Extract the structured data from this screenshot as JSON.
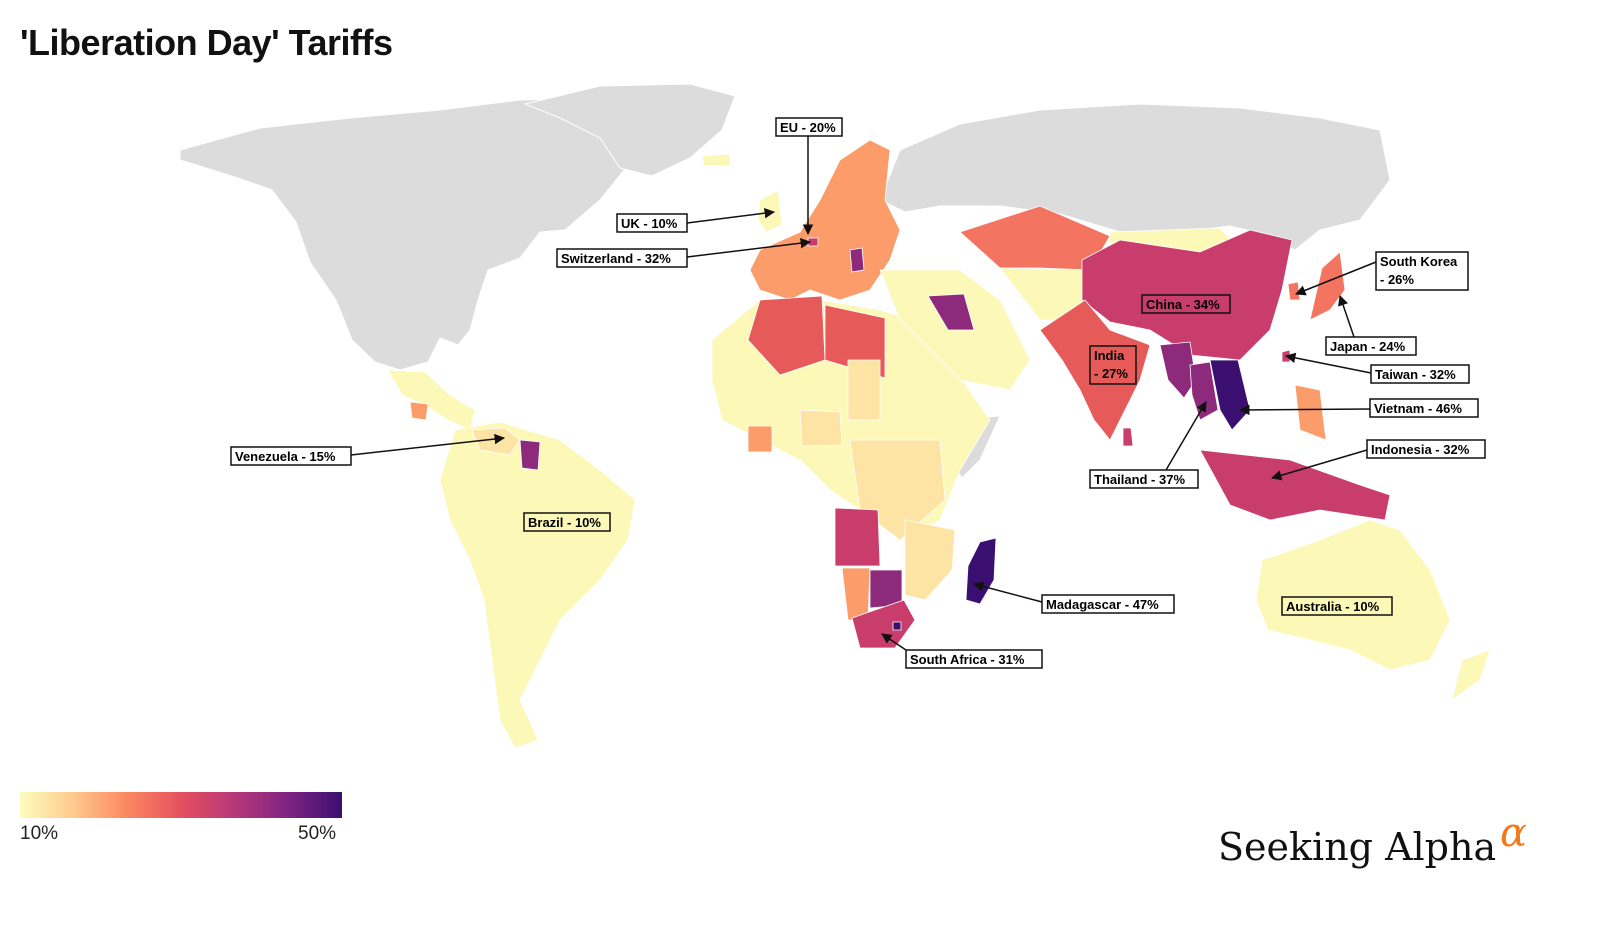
{
  "title": "'Liberation Day' Tariffs",
  "legend": {
    "min": "10%",
    "max": "50%"
  },
  "brand": {
    "name": "Seeking Alpha",
    "mark": "α"
  },
  "colors": {
    "none": "#dcdcdc",
    "t10": "#fcf8b8",
    "t15": "#fde3a4",
    "t20": "#fb9c6a",
    "t24": "#f37460",
    "t27": "#e65a5a",
    "t32": "#c83d6b",
    "t37": "#8d2a7c",
    "t47": "#3b0f70"
  },
  "labels": [
    {
      "id": "eu",
      "text": "EU - 20%"
    },
    {
      "id": "uk",
      "text": "UK - 10%"
    },
    {
      "id": "switzerland",
      "text": "Switzerland - 32%"
    },
    {
      "id": "venezuela",
      "text": "Venezuela - 15%"
    },
    {
      "id": "brazil",
      "text": "Brazil - 10%"
    },
    {
      "id": "china",
      "text": "China - 34%"
    },
    {
      "id": "india1",
      "text": "India"
    },
    {
      "id": "india2",
      "text": "- 27%"
    },
    {
      "id": "southkorea1",
      "text": "South Korea"
    },
    {
      "id": "southkorea2",
      "text": "- 26%"
    },
    {
      "id": "japan",
      "text": "Japan - 24%"
    },
    {
      "id": "taiwan",
      "text": "Taiwan - 32%"
    },
    {
      "id": "vietnam",
      "text": "Vietnam - 46%"
    },
    {
      "id": "indonesia",
      "text": "Indonesia - 32%"
    },
    {
      "id": "thailand",
      "text": "Thailand - 37%"
    },
    {
      "id": "madagascar",
      "text": "Madagascar - 47%"
    },
    {
      "id": "southafrica",
      "text": "South Africa - 31%"
    },
    {
      "id": "australia",
      "text": "Australia - 10%"
    }
  ]
}
